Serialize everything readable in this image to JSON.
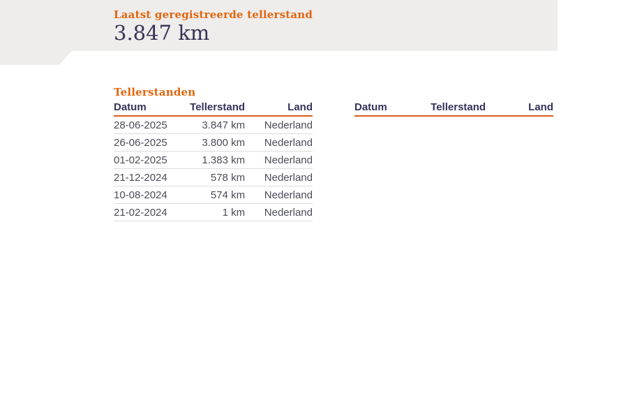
{
  "colors": {
    "hero_bg": "#efedec",
    "accent_orange": "#e2660e",
    "rule_orange": "#dd5c17",
    "heading_navy": "#35325b",
    "value_navy": "#363352",
    "cell_gray": "#4b4b59"
  },
  "hero": {
    "label": "Laatst geregistreerde tellerstand",
    "value": "3.847 km"
  },
  "section": {
    "title": "Tellerstanden"
  },
  "tables": {
    "columns": [
      "Datum",
      "Tellerstand",
      "Land"
    ],
    "left": {
      "rows": [
        {
          "datum": "28-06-2025",
          "tellerstand": "3.847 km",
          "land": "Nederland"
        },
        {
          "datum": "26-06-2025",
          "tellerstand": "3.800 km",
          "land": "Nederland"
        },
        {
          "datum": "01-02-2025",
          "tellerstand": "1.383 km",
          "land": "Nederland"
        },
        {
          "datum": "21-12-2024",
          "tellerstand": "578 km",
          "land": "Nederland"
        },
        {
          "datum": "10-08-2024",
          "tellerstand": "574 km",
          "land": "Nederland"
        },
        {
          "datum": "21-02-2024",
          "tellerstand": "1 km",
          "land": "Nederland"
        }
      ]
    },
    "right": {
      "rows": []
    }
  }
}
